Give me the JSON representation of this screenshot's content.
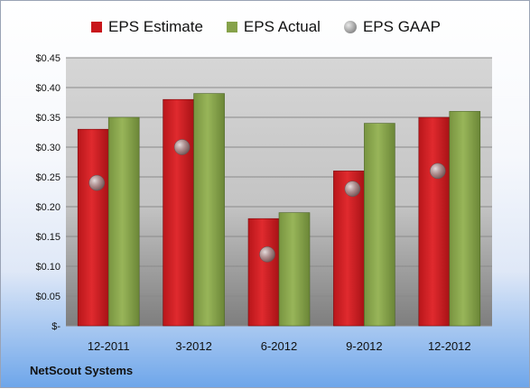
{
  "chart_data": {
    "type": "bar",
    "categories": [
      "12-2011",
      "3-2012",
      "6-2012",
      "9-2012",
      "12-2012"
    ],
    "series": [
      {
        "name": "EPS Estimate",
        "type": "bar",
        "values": [
          0.33,
          0.38,
          0.18,
          0.26,
          0.35
        ],
        "color": "#c8161b"
      },
      {
        "name": "EPS Actual",
        "type": "bar",
        "values": [
          0.35,
          0.39,
          0.19,
          0.34,
          0.36
        ],
        "color": "#86a24a"
      },
      {
        "name": "EPS GAAP",
        "type": "scatter",
        "values": [
          0.24,
          0.3,
          0.12,
          0.23,
          0.26
        ],
        "color": "#8c8c8c"
      }
    ],
    "yticks": [
      "$-",
      "$0.05",
      "$0.10",
      "$0.15",
      "$0.20",
      "$0.25",
      "$0.30",
      "$0.35",
      "$0.40",
      "$0.45"
    ],
    "ylim": [
      0,
      0.45
    ],
    "grid": true,
    "legend": "top",
    "source_label": "NetScout Systems"
  }
}
